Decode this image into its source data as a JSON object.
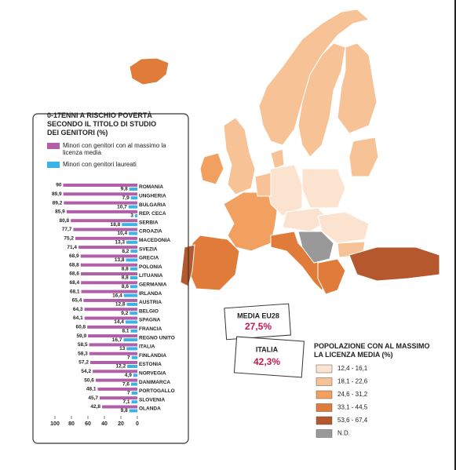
{
  "chart_data": {
    "type": "hbar",
    "title": "0-17ENNI A RISCHIO POVERTÀ SECONDO IL TITOLO DI STUDIO DEI GENITORI (%)",
    "categories": [
      "ROMANIA",
      "UNGHERIA",
      "BULGARIA",
      "REP. CECA",
      "SERBIA",
      "CROAZIA",
      "MACEDONIA",
      "SVEZIA",
      "GRECIA",
      "POLONIA",
      "LITUANIA",
      "GERMANIA",
      "IRLANDA",
      "AUSTRIA",
      "BELGIO",
      "SPAGNA",
      "FRANCIA",
      "REGNO UNITO",
      "ITALIA",
      "FINLANDIA",
      "ESTONIA",
      "NORVEGIA",
      "DANIMARCA",
      "PORTOGALLO",
      "SLOVENIA",
      "OLANDA"
    ],
    "series": [
      {
        "name": "Minori con genitori con al massimo la licenza media",
        "color": "#b05fa8",
        "values": [
          90,
          89.9,
          89.2,
          85.9,
          80.8,
          77.7,
          75.2,
          71.4,
          68.9,
          68.8,
          68.6,
          68.4,
          68.1,
          65.4,
          64.3,
          64.1,
          60.8,
          59.9,
          58.5,
          58.3,
          57.2,
          54.2,
          50.6,
          48.1,
          45.7,
          42.8
        ],
        "value_labels": [
          "90",
          "89,9",
          "89,2",
          "85,9",
          "80,8",
          "77,7",
          "75,2",
          "71,4",
          "68,9",
          "68,8",
          "68,6",
          "68,4",
          "68,1",
          "65,4",
          "64,3",
          "64,1",
          "60,8",
          "59,9",
          "58,5",
          "58,3",
          "57,2",
          "54,2",
          "50,6",
          "48,1",
          "45,7",
          "42,8"
        ]
      },
      {
        "name": "Minori con genitori laureati",
        "color": "#3ab4e6",
        "values": [
          9.8,
          7.9,
          10.7,
          3,
          18.8,
          10.4,
          13.3,
          8.2,
          13.8,
          8.8,
          8.8,
          8.6,
          16.4,
          12.8,
          9.2,
          14.4,
          8.1,
          16.7,
          13,
          7,
          12.2,
          4.9,
          7.6,
          7,
          7.1,
          9.8
        ],
        "value_labels": [
          "9,8",
          "7,9",
          "10,7",
          "3",
          "18,8",
          "10,4",
          "13,3",
          "8,2",
          "13,8",
          "8,8",
          "8,8",
          "8,6",
          "16,4",
          "12,8",
          "9,2",
          "14,4",
          "8,1",
          "16,7",
          "13",
          "7",
          "12,2",
          "4,9",
          "7,6",
          "7",
          "7,1",
          "9,8"
        ]
      }
    ],
    "xlim": [
      100,
      0
    ],
    "xticks": [
      100,
      80,
      60,
      40,
      20,
      0
    ]
  },
  "callouts": [
    {
      "label": "MEDIA EU28",
      "value": "27,5%"
    },
    {
      "label": "ITALIA",
      "value": "42,3%"
    }
  ],
  "map_legend": {
    "title": "POPOLAZIONE CON AL MASSIMO LA LICENZA MEDIA (%)",
    "classes": [
      {
        "label": "12,4 - 16,1",
        "color": "#fbe3d0"
      },
      {
        "label": "18,1 - 22,6",
        "color": "#f7c295"
      },
      {
        "label": "24,6 - 31,2",
        "color": "#f2a05f"
      },
      {
        "label": "33,1 - 44,5",
        "color": "#e07b39"
      },
      {
        "label": "53,6 - 67,4",
        "color": "#b5582d"
      },
      {
        "label": "N.D.",
        "color": "#999999"
      }
    ]
  }
}
